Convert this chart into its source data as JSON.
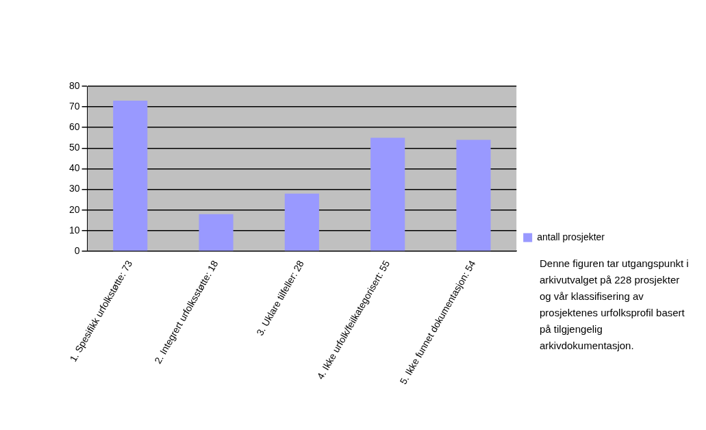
{
  "chart_data": {
    "type": "bar",
    "categories": [
      "1. Spesifikk urfolkstøtte: 73",
      "2. Integrert urfolksstøtte: 18",
      "3. Uklare tilfeller: 28",
      "4. Ikke urfolk/feilkategorisert: 55",
      "5. Ikke funnet dokumentasjon: 54"
    ],
    "series": [
      {
        "name": "antall prosjekter",
        "color": "#9999ff",
        "values": [
          73,
          18,
          28,
          55,
          54
        ]
      }
    ],
    "ylim": [
      0,
      80
    ],
    "yticks": [
      0,
      10,
      20,
      30,
      40,
      50,
      60,
      70,
      80
    ],
    "grid": "y",
    "legend": "right",
    "annotations": [
      "Denne figuren tar utgangspunkt i arkivutvalget på 228 prosjekter og vår klassifisering av prosjektenes urfolksprofil basert på tilgjengelig arkivdokumentasjon."
    ]
  }
}
